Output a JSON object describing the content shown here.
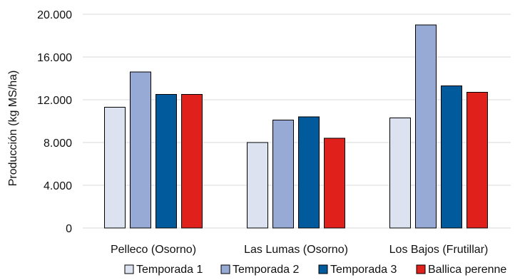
{
  "chart_data": {
    "type": "bar",
    "ylabel": "Producción (kg MS/ha)",
    "xlabel": "",
    "ylim": [
      0,
      20000
    ],
    "yticks": [
      {
        "value": 0,
        "label": "0"
      },
      {
        "value": 4000,
        "label": "4.000"
      },
      {
        "value": 8000,
        "label": "8.000"
      },
      {
        "value": 12000,
        "label": "12.000"
      },
      {
        "value": 16000,
        "label": "16.000"
      },
      {
        "value": 20000,
        "label": "20.000"
      }
    ],
    "grid": true,
    "legend_position": "bottom",
    "categories": [
      "Pelleco (Osorno)",
      "Las Lumas (Osorno)",
      "Los Bajos (Frutillar)"
    ],
    "series": [
      {
        "name": "Temporada 1",
        "color": "#dde2f0",
        "values": [
          11300,
          8000,
          10300
        ]
      },
      {
        "name": "Temporada 2",
        "color": "#96aad5",
        "values": [
          14600,
          10100,
          19000
        ]
      },
      {
        "name": "Temporada 3",
        "color": "#005a9c",
        "values": [
          12500,
          10400,
          13300
        ]
      },
      {
        "name": "Ballica perenne",
        "color": "#e0201b",
        "values": [
          12500,
          8400,
          12700
        ]
      }
    ]
  }
}
